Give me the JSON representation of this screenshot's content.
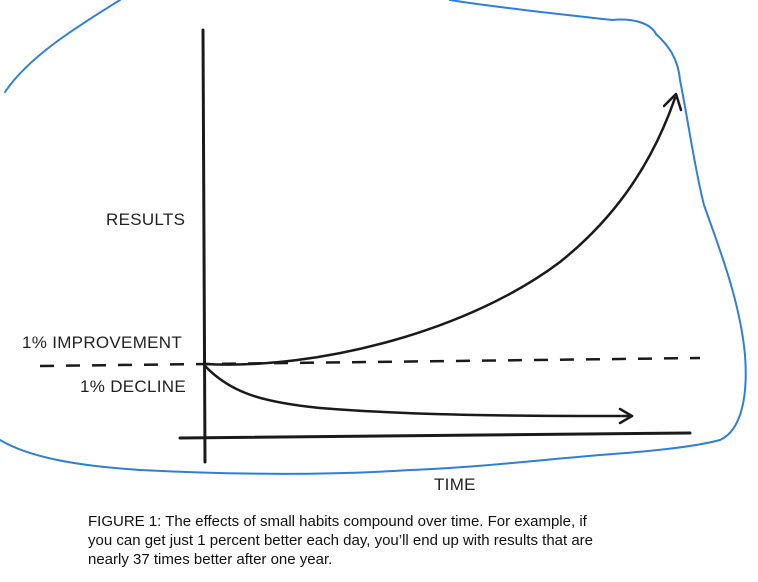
{
  "chart_data": {
    "type": "line",
    "y_label": "RESULTS",
    "x_label": "TIME",
    "series": [
      {
        "name": "1% IMPROVEMENT",
        "shape": "exponential-growth",
        "style": "solid-arrow"
      },
      {
        "name": "1% DECLINE",
        "shape": "exponential-decay",
        "style": "solid-arrow"
      }
    ],
    "baseline": {
      "style": "dashed"
    },
    "grid": false
  },
  "caption": {
    "line1": "FIGURE 1: The effects of small habits compound over time. For example, if",
    "line2": "you can get just 1 percent better each day, you’ll end up with results that are",
    "line3": "nearly 37 times better after one year."
  },
  "colors": {
    "ink": "#1a1a1a",
    "annotation": "#2f7fd8"
  }
}
